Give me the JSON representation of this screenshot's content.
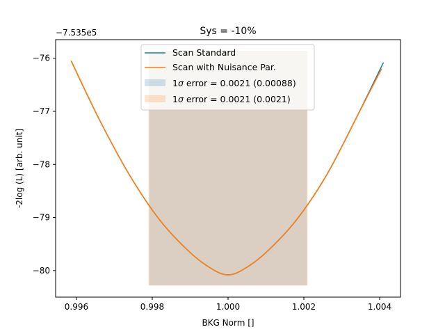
{
  "chart_data": {
    "type": "line",
    "title": "Sys = -10%",
    "xlabel": "BKG Norm []",
    "ylabel": "-2log (L) [arb. unit]",
    "y_offset_label": "−7.535e5",
    "xlim": [
      0.99545,
      1.00455
    ],
    "ylim": [
      -80.5,
      -75.65
    ],
    "x_ticks": [
      0.996,
      0.998,
      1.0,
      1.002,
      1.004
    ],
    "x_tick_labels": [
      "0.996",
      "0.998",
      "1.000",
      "1.002",
      "1.004"
    ],
    "y_ticks": [
      -80,
      -79,
      -78,
      -77,
      -76
    ],
    "y_tick_labels": [
      "−80",
      "−79",
      "−78",
      "−77",
      "−76"
    ],
    "grid": false,
    "legend_position": "upper-center",
    "series": [
      {
        "name": "Scan Standard",
        "color": "#1f77b4",
        "x": [
          0.99586,
          0.9966,
          0.9974,
          0.9982,
          0.999,
          0.9996,
          1.0,
          1.0004,
          1.001,
          1.0018,
          1.0026,
          1.0034,
          1.0041
        ],
        "y": [
          -76.05,
          -77.15,
          -78.2,
          -79.05,
          -79.66,
          -79.98,
          -80.08,
          -79.98,
          -79.66,
          -79.05,
          -78.2,
          -77.1,
          -76.08
        ]
      },
      {
        "name": "Scan with Nuisance Par.",
        "color": "#ff7f0e",
        "x": [
          0.99586,
          0.9966,
          0.9974,
          0.9982,
          0.999,
          0.9996,
          1.0,
          1.0004,
          1.001,
          1.0018,
          1.0026,
          1.0034,
          1.00405
        ],
        "y": [
          -76.05,
          -77.15,
          -78.2,
          -79.05,
          -79.66,
          -79.98,
          -80.08,
          -79.98,
          -79.66,
          -79.05,
          -78.2,
          -77.1,
          -76.2
        ]
      }
    ],
    "bands": [
      {
        "label_prefix": "1",
        "label_symbol": "σ",
        "label_suffix": " error = 0.0021 (0.00088)",
        "color": "#1f77b4",
        "opacity": 0.2,
        "x": [
          0.99792,
          1.00208
        ],
        "y": [
          -80.28,
          -75.86
        ]
      },
      {
        "label_prefix": "1",
        "label_symbol": "σ",
        "label_suffix": " error = 0.0021 (0.0021)",
        "color": "#ff7f0e",
        "opacity": 0.2,
        "x": [
          0.9979,
          1.0021
        ],
        "y": [
          -80.28,
          -75.86
        ]
      }
    ]
  }
}
